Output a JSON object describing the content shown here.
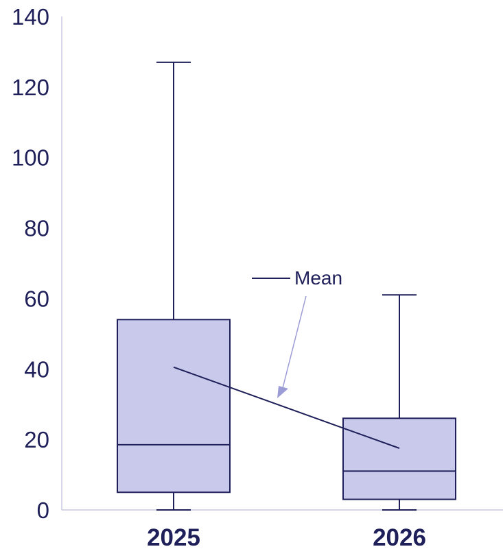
{
  "chart_data": {
    "type": "box",
    "title": "",
    "xlabel": "",
    "ylabel": "",
    "ylim": [
      0,
      140
    ],
    "yticks": [
      0,
      20,
      40,
      60,
      80,
      100,
      120,
      140
    ],
    "grid": false,
    "categories": [
      "2025",
      "2026"
    ],
    "boxes": [
      {
        "category": "2025",
        "min": 0,
        "q1": 5,
        "median": 18.5,
        "q3": 54,
        "max": 127,
        "mean": 40.5
      },
      {
        "category": "2026",
        "min": 0,
        "q1": 3,
        "median": 11,
        "q3": 26,
        "max": 61,
        "mean": 17.5
      }
    ],
    "legend": {
      "label": "Mean",
      "placement": "center"
    },
    "colors": {
      "box_fill": "#c9c9eb",
      "stroke": "#1f1f5a",
      "axis": "#c8c8e0",
      "arrow": "#9b9bd6"
    }
  }
}
